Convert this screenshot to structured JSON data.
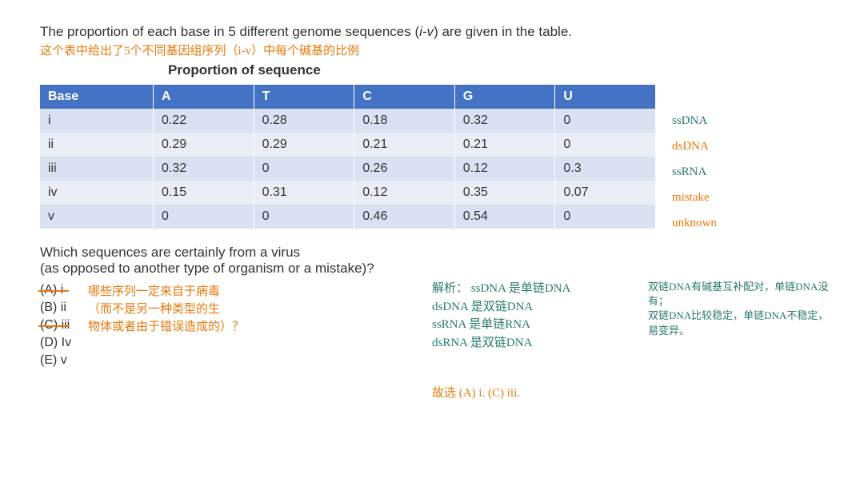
{
  "question": {
    "intro_before": "The proportion of each base in 5 different genome sequences (",
    "intro_italic": "i-v",
    "intro_after": ") are given in the table.",
    "handwritten_translation": "这个表中给出了5个不同基因组序列（i-v）中每个碱基的比例"
  },
  "table": {
    "caption": "Proportion of sequence",
    "headers": [
      "Base",
      "A",
      "T",
      "C",
      "G",
      "U"
    ],
    "rows": [
      {
        "cells": [
          "i",
          "0.22",
          "0.28",
          "0.18",
          "0.32",
          "0"
        ],
        "note": "ssDNA",
        "note_color": "#2a7a6f"
      },
      {
        "cells": [
          "ii",
          "0.29",
          "0.29",
          "0.21",
          "0.21",
          "0"
        ],
        "note": "dsDNA",
        "note_color": "#e8790a"
      },
      {
        "cells": [
          "iii",
          "0.32",
          "0",
          "0.26",
          "0.12",
          "0.3"
        ],
        "note": "ssRNA",
        "note_color": "#2a7a6f"
      },
      {
        "cells": [
          "iv",
          "0.15",
          "0.31",
          "0.12",
          "0.35",
          "0.07"
        ],
        "note": "mistake",
        "note_color": "#e8790a"
      },
      {
        "cells": [
          "v",
          "0",
          "0",
          "0.46",
          "0.54",
          "0"
        ],
        "note": "unknown",
        "note_color": "#e8790a"
      }
    ],
    "header_bg": "#4472c4",
    "header_fg": "#ffffff",
    "row_odd_bg": "#d9e2f3",
    "row_even_bg": "#eaedf5"
  },
  "question2": {
    "line1": "Which sequences are certainly from a virus",
    "line2": "(as opposed to another type of organism or a mistake)?",
    "options": [
      {
        "label": "(A) i",
        "struck": true
      },
      {
        "label": "(B) ii",
        "struck": false
      },
      {
        "label": "(C) iii",
        "struck": true
      },
      {
        "label": "(D) Iv",
        "struck": false
      },
      {
        "label": "(E) v",
        "struck": false
      }
    ],
    "handwritten_lines": [
      "哪些序列一定来自于病毒",
      "（而不是另一种类型的生",
      "物体或者由于错误造成的）？"
    ]
  },
  "analysis": {
    "header": "解析：",
    "lines": [
      "ssDNA 是单链DNA",
      "dsDNA 是双链DNA",
      "ssRNA 是单链RNA",
      "dsRNA 是双链DNA"
    ],
    "far_right": [
      "双链DNA有碱基互补配对，单链DNA没有；",
      "双链DNA比较稳定，单链DNA不稳定，易变异。"
    ],
    "final": "故选 (A) i.   (C) iii."
  }
}
